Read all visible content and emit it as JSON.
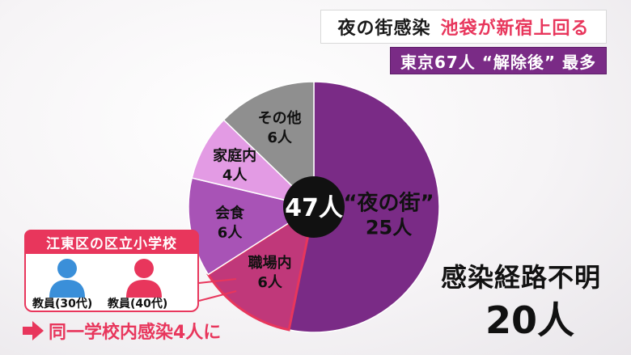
{
  "headline": {
    "part1": "夜の街感染",
    "part2": "池袋が新宿上回る",
    "subheadline": "東京67人 “解除後” 最多"
  },
  "pie": {
    "center_total": "47人",
    "slices": [
      {
        "label": "“夜の街”",
        "count_text": "25人",
        "value": 25,
        "color": "#7a2b86"
      },
      {
        "label": "職場内",
        "count_text": "6人",
        "value": 6,
        "color": "#c0387a"
      },
      {
        "label": "会食",
        "count_text": "6人",
        "value": 6,
        "color": "#a853b6"
      },
      {
        "label": "家庭内",
        "count_text": "4人",
        "value": 4,
        "color": "#e39be4"
      },
      {
        "label": "その他",
        "count_text": "6人",
        "value": 6,
        "color": "#8f8f8f"
      }
    ]
  },
  "koto": {
    "title": "江東区の区立小学校",
    "teacher1": "教員(30代)",
    "teacher2": "教員(40代)",
    "teacher1_color": "#3a8fd9",
    "teacher2_color": "#e8365c",
    "conclusion": "同一学校内感染4人に"
  },
  "unknown": {
    "title": "感染経路不明",
    "count": "20人"
  }
}
